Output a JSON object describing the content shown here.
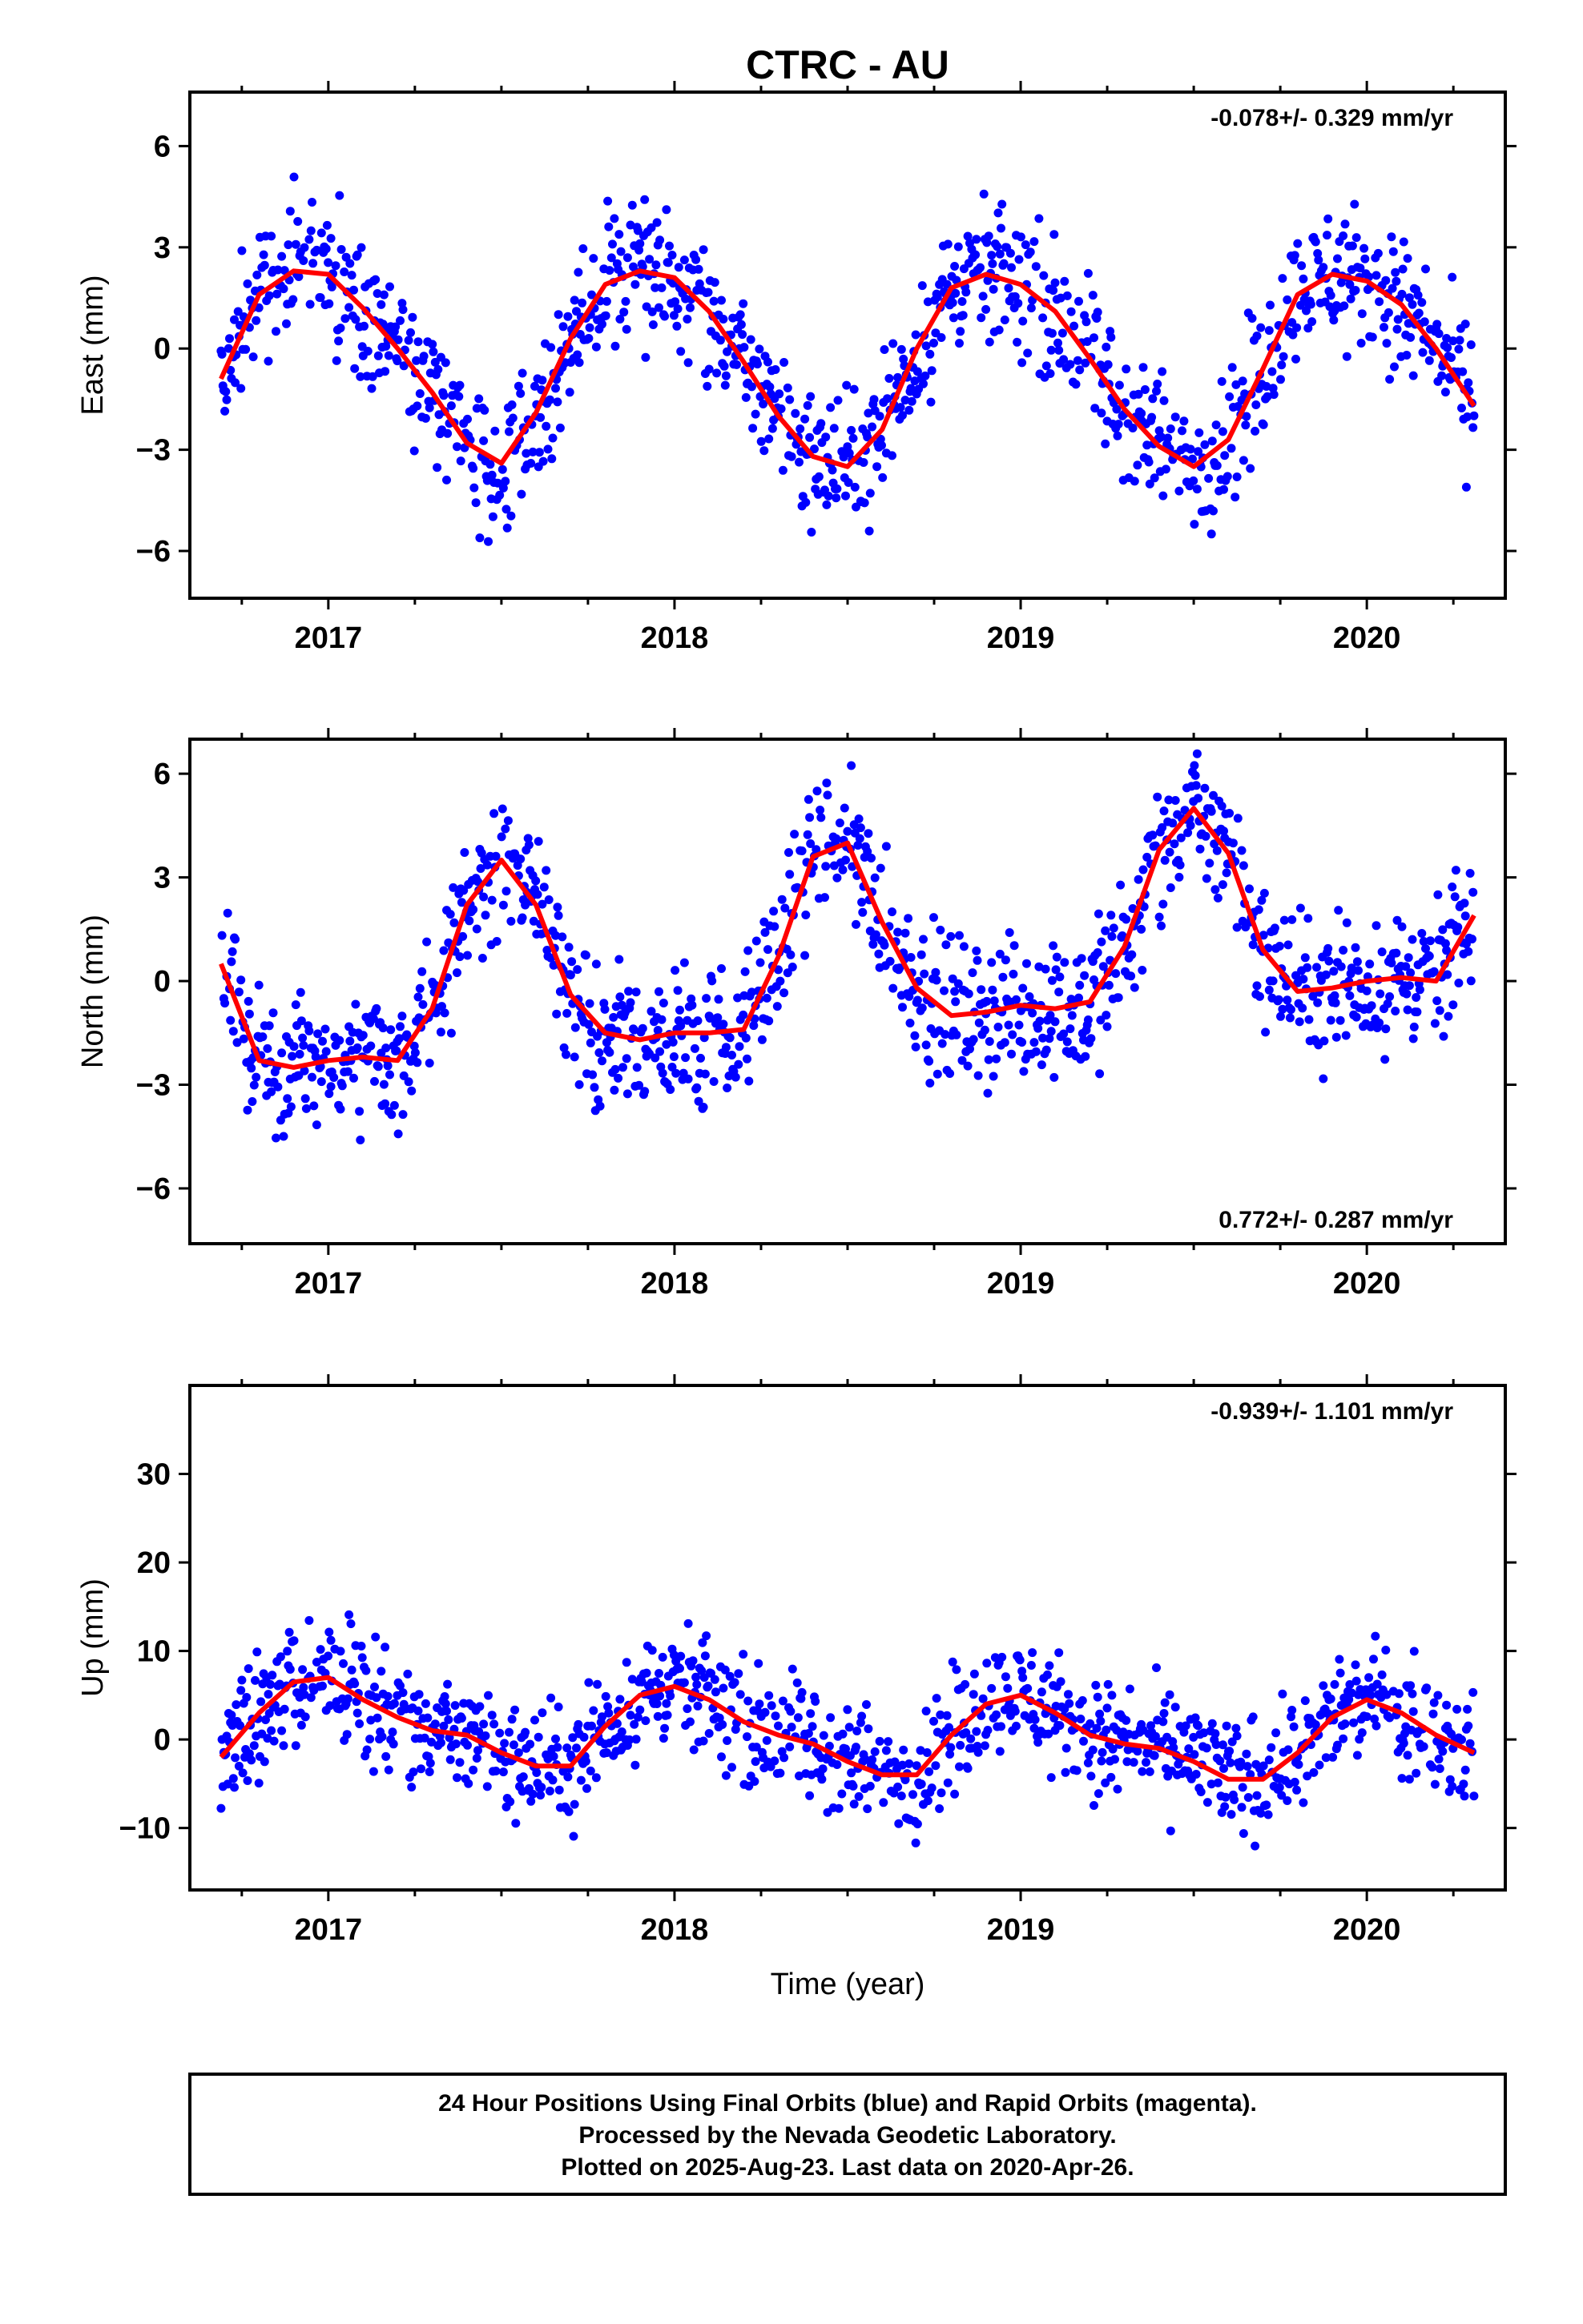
{
  "title": "CTRC - AU",
  "chart_data": [
    {
      "type": "scatter",
      "title": "",
      "xlabel": "",
      "ylabel": "East (mm)",
      "xlim": [
        2016.6,
        2020.4
      ],
      "ylim": [
        -7.4,
        7.6
      ],
      "xticks": [
        2017,
        2018,
        2019,
        2020
      ],
      "xtick_labels": [
        "2017",
        "2018",
        "2019",
        "2020"
      ],
      "yticks": [
        -6,
        -3,
        0,
        3,
        6
      ],
      "ytick_labels": [
        "−6",
        "−3",
        "0",
        "3",
        "6"
      ],
      "grid": false,
      "rate_text": "-0.078+/- 0.329 mm/yr",
      "rate_position": "top-right",
      "series": [
        {
          "color": "#0000ff",
          "style": "markers"
        },
        {
          "color": "#ff0000",
          "style": "line",
          "x": [
            2016.69,
            2016.8,
            2016.9,
            2017.0,
            2017.1,
            2017.2,
            2017.3,
            2017.4,
            2017.5,
            2017.6,
            2017.7,
            2017.8,
            2017.9,
            2018.0,
            2018.1,
            2018.2,
            2018.3,
            2018.4,
            2018.5,
            2018.6,
            2018.7,
            2018.8,
            2018.9,
            2019.0,
            2019.1,
            2019.2,
            2019.3,
            2019.4,
            2019.5,
            2019.6,
            2019.7,
            2019.8,
            2019.9,
            2020.0,
            2020.1,
            2020.2,
            2020.31
          ],
          "y": [
            -0.9,
            1.6,
            2.3,
            2.2,
            1.2,
            0.0,
            -1.3,
            -2.8,
            -3.4,
            -1.9,
            0.3,
            1.9,
            2.3,
            2.1,
            1.1,
            -0.4,
            -2.0,
            -3.2,
            -3.5,
            -2.4,
            0.0,
            1.8,
            2.2,
            1.9,
            1.1,
            -0.3,
            -1.8,
            -2.9,
            -3.5,
            -2.7,
            -0.6,
            1.6,
            2.2,
            2.0,
            1.3,
            0.0,
            -1.7
          ]
        }
      ]
    },
    {
      "type": "scatter",
      "title": "",
      "xlabel": "",
      "ylabel": "North (mm)",
      "xlim": [
        2016.6,
        2020.4
      ],
      "ylim": [
        -7.6,
        7.0
      ],
      "xticks": [
        2017,
        2018,
        2019,
        2020
      ],
      "xtick_labels": [
        "2017",
        "2018",
        "2019",
        "2020"
      ],
      "yticks": [
        -6,
        -3,
        0,
        3,
        6
      ],
      "ytick_labels": [
        "−6",
        "−3",
        "0",
        "3",
        "6"
      ],
      "grid": false,
      "rate_text": "0.772+/- 0.287 mm/yr",
      "rate_position": "bottom-right",
      "series": [
        {
          "color": "#0000ff",
          "style": "markers"
        },
        {
          "color": "#ff0000",
          "style": "line",
          "x": [
            2016.69,
            2016.8,
            2016.9,
            2017.0,
            2017.1,
            2017.2,
            2017.3,
            2017.4,
            2017.5,
            2017.6,
            2017.7,
            2017.8,
            2017.9,
            2018.0,
            2018.1,
            2018.2,
            2018.3,
            2018.4,
            2018.5,
            2018.6,
            2018.7,
            2018.8,
            2018.9,
            2019.0,
            2019.1,
            2019.2,
            2019.3,
            2019.4,
            2019.5,
            2019.6,
            2019.7,
            2019.8,
            2019.9,
            2020.0,
            2020.1,
            2020.2,
            2020.31
          ],
          "y": [
            0.5,
            -2.3,
            -2.5,
            -2.3,
            -2.2,
            -2.3,
            -0.8,
            2.2,
            3.5,
            2.2,
            -0.4,
            -1.5,
            -1.7,
            -1.5,
            -1.5,
            -1.4,
            0.7,
            3.6,
            4.0,
            1.7,
            -0.2,
            -1.0,
            -0.9,
            -0.7,
            -0.8,
            -0.6,
            1.0,
            3.8,
            5.0,
            3.7,
            0.9,
            -0.3,
            -0.2,
            0.0,
            0.1,
            0.0,
            1.9
          ]
        }
      ]
    },
    {
      "type": "scatter",
      "title": "",
      "xlabel": "Time (year)",
      "ylabel": "Up (mm)",
      "xlim": [
        2016.6,
        2020.4
      ],
      "ylim": [
        -17,
        40
      ],
      "xticks": [
        2017,
        2018,
        2019,
        2020
      ],
      "xtick_labels": [
        "2017",
        "2018",
        "2019",
        "2020"
      ],
      "yticks": [
        -10,
        0,
        10,
        20,
        30
      ],
      "ytick_labels": [
        "−10",
        "0",
        "10",
        "20",
        "30"
      ],
      "grid": false,
      "rate_text": "-0.939+/- 1.101 mm/yr",
      "rate_position": "top-right",
      "series": [
        {
          "color": "#0000ff",
          "style": "markers"
        },
        {
          "color": "#ff0000",
          "style": "line",
          "x": [
            2016.69,
            2016.8,
            2016.9,
            2017.0,
            2017.1,
            2017.2,
            2017.3,
            2017.4,
            2017.5,
            2017.6,
            2017.7,
            2017.8,
            2017.9,
            2018.0,
            2018.1,
            2018.2,
            2018.3,
            2018.4,
            2018.5,
            2018.6,
            2018.7,
            2018.8,
            2018.9,
            2019.0,
            2019.1,
            2019.2,
            2019.3,
            2019.4,
            2019.5,
            2019.6,
            2019.7,
            2019.8,
            2019.9,
            2020.0,
            2020.1,
            2020.2,
            2020.31
          ],
          "y": [
            -2.0,
            3.0,
            6.5,
            7.0,
            4.5,
            2.5,
            1.0,
            0.5,
            -1.5,
            -3.0,
            -3.0,
            1.5,
            5.0,
            6.0,
            4.5,
            2.0,
            0.5,
            -0.5,
            -2.5,
            -4.0,
            -4.0,
            0.5,
            4.0,
            5.0,
            3.0,
            0.5,
            -0.5,
            -1.0,
            -2.5,
            -4.5,
            -4.5,
            -1.5,
            2.5,
            4.5,
            3.0,
            0.5,
            -1.5
          ]
        }
      ]
    }
  ],
  "caption": {
    "line1": "24 Hour Positions Using Final Orbits (blue) and Rapid Orbits (magenta).",
    "line2": "Processed by the Nevada Geodetic Laboratory.",
    "line3": "Plotted on 2025-Aug-23. Last data on 2020-Apr-26."
  }
}
